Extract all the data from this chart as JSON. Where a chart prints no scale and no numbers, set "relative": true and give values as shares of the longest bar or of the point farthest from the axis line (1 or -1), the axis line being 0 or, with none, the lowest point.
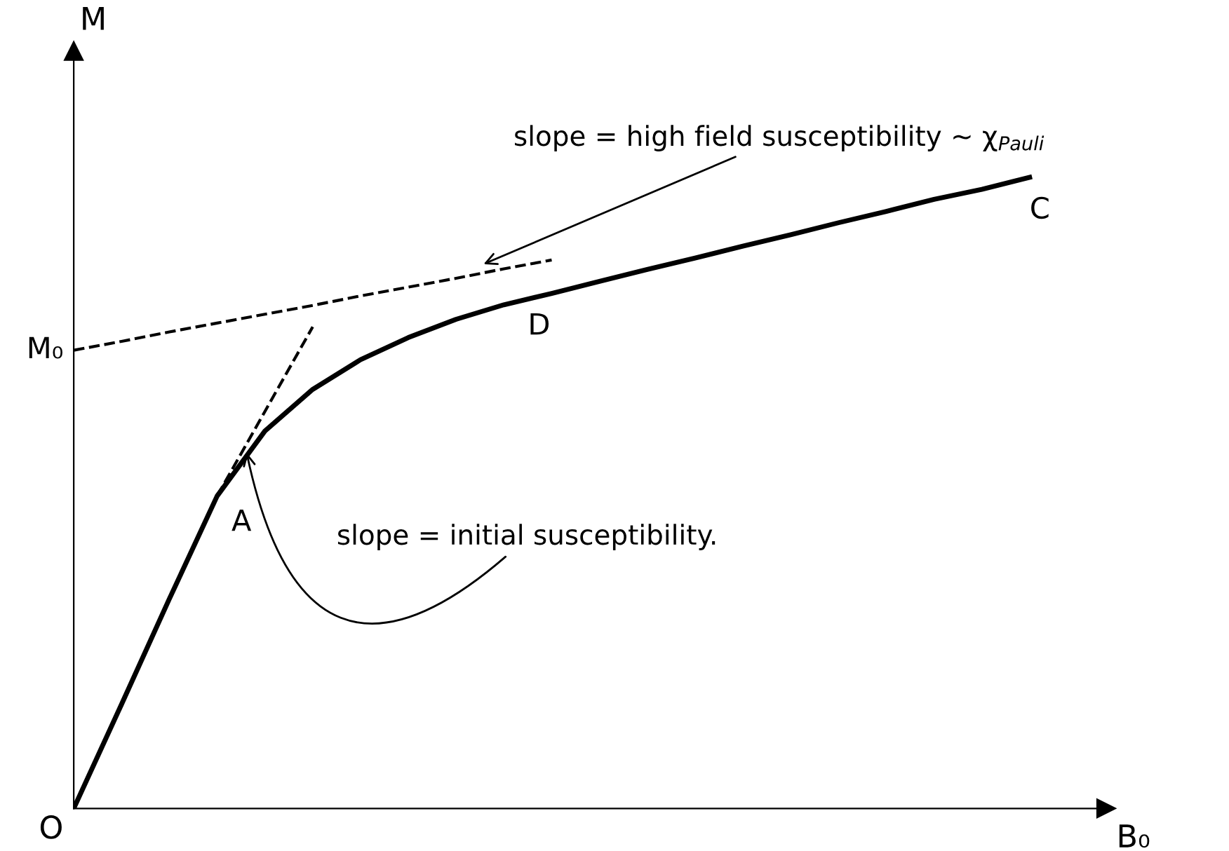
{
  "chart_data": {
    "type": "line",
    "relative": true,
    "xlabel": "B₀",
    "ylabel": "M",
    "categories": [
      null,
      null,
      null,
      null,
      null,
      null,
      null,
      null,
      null,
      null,
      null,
      null,
      null,
      null,
      null,
      null,
      null,
      null,
      null,
      null,
      null
    ],
    "series": [
      {
        "color": "#000000",
        "line_style": "solid",
        "values": [
          0,
          0.165,
          0.332,
          0.495,
          0.598,
          0.664,
          0.711,
          0.746,
          0.775,
          0.798,
          0.816,
          0.835,
          0.854,
          0.872,
          0.891,
          0.909,
          0.928,
          0.946,
          0.965,
          0.981,
          1
        ]
      },
      {
        "color": "#000000",
        "line_style": "dashed",
        "values": [
          0.726,
          0.74,
          0.755,
          0.769,
          0.783,
          0.797,
          0.812,
          0.826,
          0.84,
          0.855,
          0.869,
          null,
          null,
          null,
          null,
          null,
          null,
          null,
          null,
          null,
          null
        ]
      },
      {
        "color": "#000000",
        "line_style": "dashed",
        "values": [
          null,
          null,
          null,
          0.495,
          0.629,
          0.763,
          null,
          null,
          null,
          null,
          null,
          null,
          null,
          null,
          null,
          null,
          null,
          null,
          null,
          null,
          null
        ]
      }
    ],
    "annotations": [
      "M₀",
      "O",
      "A",
      "D",
      "C",
      "slope = high field susceptibility ~ χ$_{Pauli}$",
      "slope = initial susceptibility."
    ]
  }
}
